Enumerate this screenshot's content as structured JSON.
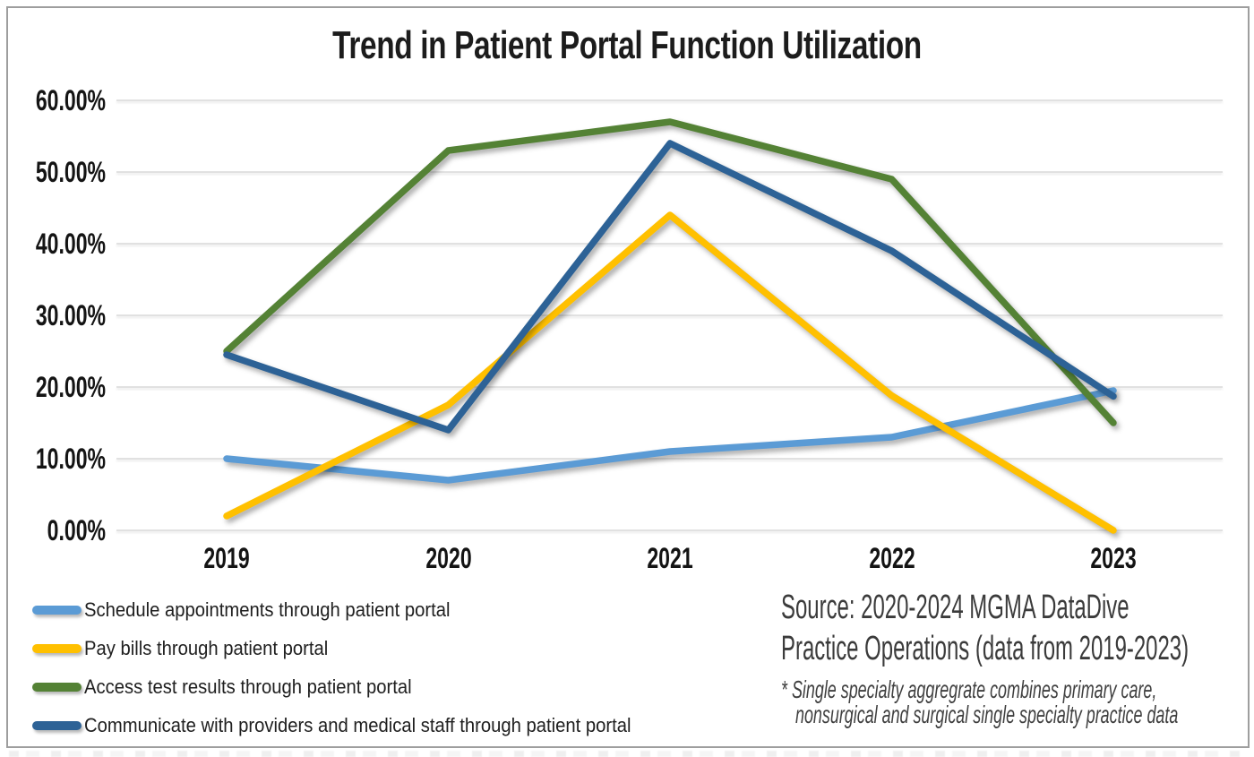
{
  "title": "Trend in Patient Portal Function Utilization",
  "chart_data": {
    "type": "line",
    "title": "Trend in Patient Portal Function Utilization",
    "categories": [
      "2019",
      "2020",
      "2021",
      "2022",
      "2023"
    ],
    "series": [
      {
        "name": "Schedule appointments through patient portal",
        "color": "#5B9BD5",
        "values": [
          10,
          7,
          11,
          13,
          19.5
        ]
      },
      {
        "name": "Pay bills through patient portal",
        "color": "#FFC000",
        "values": [
          2,
          17.5,
          44,
          18.8,
          0
        ]
      },
      {
        "name": "Access test results through patient portal",
        "color": "#548235",
        "values": [
          25,
          53,
          57,
          49,
          15
        ]
      },
      {
        "name": "Communicate with providers and medical staff through patient portal",
        "color": "#2D6296",
        "values": [
          24.5,
          14,
          54,
          39,
          18.7
        ]
      }
    ],
    "xlabel": "",
    "ylabel": "",
    "ylim": [
      0,
      60
    ],
    "ytick_step": 10,
    "ytick_labels": [
      "0.00%",
      "10.00%",
      "20.00%",
      "30.00%",
      "40.00%",
      "50.00%",
      "60.00%"
    ],
    "grid": true,
    "gridline_color": "#d9d9d9",
    "legend_position": "bottom-left"
  },
  "source": {
    "line1": "Source: 2020-2024 MGMA DataDive",
    "line2": "Practice Operations (data from 2019-2023)",
    "note_line1": "* Single specialty aggregrate combines primary care,",
    "note_line2": "nonsurgical and surgical single specialty practice data"
  }
}
